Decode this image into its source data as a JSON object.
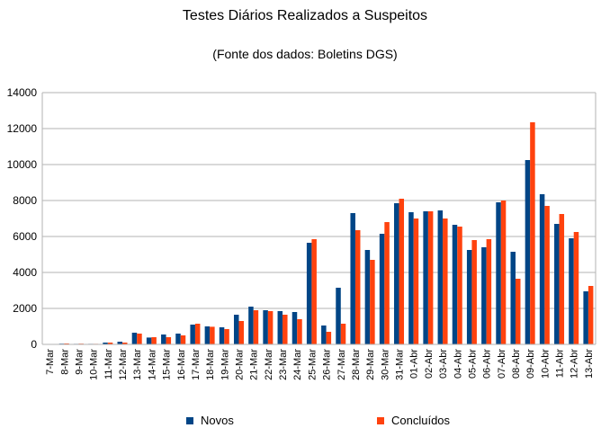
{
  "chart_data": {
    "type": "bar",
    "title": "Testes Diários Realizados a Suspeitos",
    "subtitle": "(Fonte dos dados: Boletins DGS)",
    "xlabel": "",
    "ylabel": "",
    "ylim": [
      0,
      14000
    ],
    "yticks": [
      "0",
      "2000",
      "4000",
      "6000",
      "8000",
      "10000",
      "12000",
      "14000"
    ],
    "grid": true,
    "legend_position": "bottom",
    "categories": [
      "7-Mar",
      "8-Mar",
      "9-Mar",
      "10-Mar",
      "11-Mar",
      "12-Mar",
      "13-Mar",
      "14-Mar",
      "15-Mar",
      "16-Mar",
      "17-Mar",
      "18-Mar",
      "19-Mar",
      "20-Mar",
      "21-Mar",
      "22-Mar",
      "23-Mar",
      "24-Mar",
      "25-Mar",
      "26-Mar",
      "27-Mar",
      "28-Mar",
      "29-Mar",
      "30-Mar",
      "31-Mar",
      "01-Abr",
      "02-Abr",
      "03-Abr",
      "04-Abr",
      "05-Abr",
      "06-Abr",
      "07-Abr",
      "08-Abr",
      "09-Abr",
      "10-Abr",
      "11-Abr",
      "12-Abr",
      "13-Abr"
    ],
    "series": [
      {
        "name": "Novos",
        "color": "#004586",
        "values": [
          20,
          40,
          30,
          30,
          100,
          150,
          650,
          380,
          550,
          600,
          1100,
          1000,
          950,
          1650,
          2100,
          1900,
          1850,
          1800,
          5650,
          1050,
          3150,
          7300,
          5250,
          6150,
          7850,
          7350,
          7400,
          7450,
          6650,
          5250,
          5400,
          7900,
          5150,
          10250,
          8350,
          6700,
          5900,
          2950
        ]
      },
      {
        "name": "Concluídos",
        "color": "#ff420e",
        "values": [
          20,
          50,
          40,
          30,
          100,
          100,
          600,
          400,
          400,
          500,
          1150,
          980,
          850,
          1300,
          1900,
          1850,
          1650,
          1400,
          5850,
          700,
          1150,
          6350,
          4700,
          6800,
          8100,
          7000,
          7400,
          7000,
          6550,
          5800,
          5850,
          8000,
          3650,
          12350,
          7700,
          7250,
          6250,
          3250
        ]
      }
    ]
  }
}
